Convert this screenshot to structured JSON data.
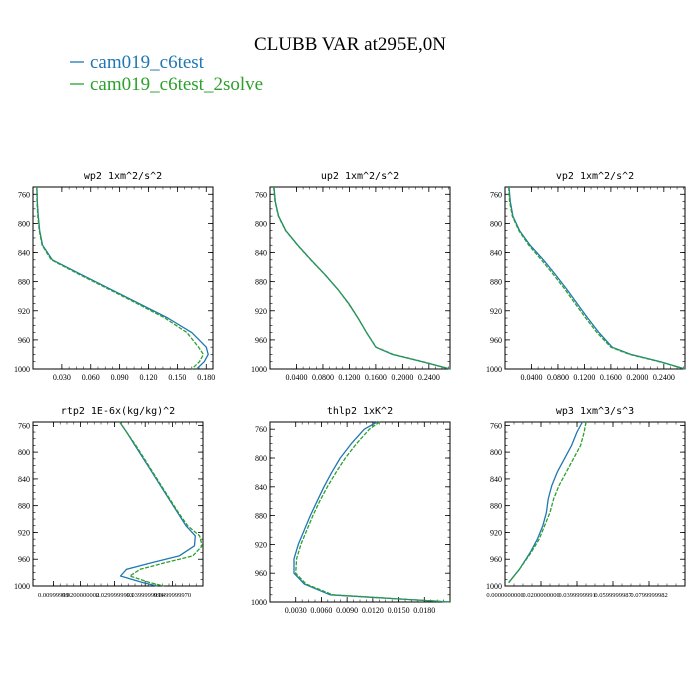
{
  "figure": {
    "title": "CLUBB VAR at295E,0N",
    "legend": [
      {
        "label": "cam019_c6test",
        "color": "#1f77b4"
      },
      {
        "label": "cam019_c6test_2solve",
        "color": "#2ca02c"
      }
    ]
  },
  "chart_data": [
    {
      "type": "line",
      "title": "wp2   1xm^2/s^2",
      "ylim": [
        1000,
        750
      ],
      "yticks": [
        "760",
        "800",
        "840",
        "880",
        "920",
        "960",
        "1000"
      ],
      "xlim": [
        0,
        0.187
      ],
      "xticks": [
        {
          "v": 0.03,
          "label": "0.030"
        },
        {
          "v": 0.06,
          "label": "0.060"
        },
        {
          "v": 0.09,
          "label": "0.090"
        },
        {
          "v": 0.12,
          "label": "0.120"
        },
        {
          "v": 0.15,
          "label": "0.150"
        },
        {
          "v": 0.18,
          "label": "0.180"
        }
      ],
      "series": [
        {
          "name": "cam019_c6test",
          "color": "#1f77b4",
          "x": [
            0.004,
            0.0045,
            0.0055,
            0.007,
            0.01,
            0.02,
            0.05,
            0.08,
            0.11,
            0.14,
            0.165,
            0.18,
            0.182,
            0.178,
            0.17
          ],
          "y": [
            750,
            770,
            790,
            810,
            830,
            850,
            870,
            890,
            910,
            930,
            950,
            970,
            980,
            990,
            1000
          ]
        },
        {
          "name": "cam019_c6test_2solve",
          "color": "#2ca02c",
          "x": [
            0.004,
            0.0042,
            0.005,
            0.0065,
            0.0095,
            0.019,
            0.048,
            0.078,
            0.108,
            0.137,
            0.16,
            0.172,
            0.177,
            0.173,
            0.165
          ],
          "y": [
            750,
            770,
            790,
            810,
            830,
            850,
            870,
            890,
            910,
            930,
            950,
            970,
            980,
            990,
            1000
          ]
        }
      ]
    },
    {
      "type": "line",
      "title": "up2   1xm^2/s^2",
      "ylim": [
        1000,
        750
      ],
      "yticks": [
        "760",
        "800",
        "840",
        "880",
        "920",
        "960",
        "1000"
      ],
      "xlim": [
        0,
        0.272
      ],
      "xticks": [
        {
          "v": 0.04,
          "label": "0.0400"
        },
        {
          "v": 0.08,
          "label": "0.0800"
        },
        {
          "v": 0.12,
          "label": "0.1200"
        },
        {
          "v": 0.16,
          "label": "0.1600"
        },
        {
          "v": 0.2,
          "label": "0.2000"
        },
        {
          "v": 0.24,
          "label": "0.2400"
        }
      ],
      "series": [
        {
          "name": "cam019_c6test",
          "color": "#1f77b4",
          "x": [
            0.006,
            0.008,
            0.013,
            0.024,
            0.042,
            0.062,
            0.083,
            0.102,
            0.119,
            0.133,
            0.146,
            0.16,
            0.185,
            0.23,
            0.272
          ],
          "y": [
            750,
            770,
            790,
            810,
            830,
            850,
            870,
            890,
            910,
            930,
            950,
            970,
            980,
            990,
            1000
          ]
        },
        {
          "name": "cam019_c6test_2solve",
          "color": "#2ca02c",
          "x": [
            0.0055,
            0.0075,
            0.0125,
            0.0235,
            0.0415,
            0.0615,
            0.0825,
            0.102,
            0.1185,
            0.133,
            0.146,
            0.1605,
            0.186,
            0.231,
            0.272
          ],
          "y": [
            750,
            770,
            790,
            810,
            830,
            850,
            870,
            890,
            910,
            930,
            950,
            970,
            980,
            990,
            1000
          ]
        }
      ]
    },
    {
      "type": "line",
      "title": "vp2   1xm^2/s^2",
      "ylim": [
        1000,
        750
      ],
      "yticks": [
        "760",
        "800",
        "840",
        "880",
        "920",
        "960",
        "1000"
      ],
      "xlim": [
        0,
        0.272
      ],
      "xticks": [
        {
          "v": 0.04,
          "label": "0.0400"
        },
        {
          "v": 0.08,
          "label": "0.0800"
        },
        {
          "v": 0.12,
          "label": "0.1200"
        },
        {
          "v": 0.16,
          "label": "0.1600"
        },
        {
          "v": 0.2,
          "label": "0.2000"
        },
        {
          "v": 0.24,
          "label": "0.2400"
        }
      ],
      "series": [
        {
          "name": "cam019_c6test",
          "color": "#1f77b4",
          "x": [
            0.006,
            0.008,
            0.012,
            0.022,
            0.038,
            0.058,
            0.076,
            0.093,
            0.109,
            0.125,
            0.142,
            0.162,
            0.19,
            0.235,
            0.272
          ],
          "y": [
            750,
            770,
            790,
            810,
            830,
            850,
            870,
            890,
            910,
            930,
            950,
            970,
            980,
            990,
            1000
          ]
        },
        {
          "name": "cam019_c6test_2solve",
          "color": "#2ca02c",
          "x": [
            0.0055,
            0.007,
            0.011,
            0.021,
            0.036,
            0.055,
            0.073,
            0.09,
            0.106,
            0.122,
            0.139,
            0.16,
            0.188,
            0.233,
            0.272
          ],
          "y": [
            750,
            770,
            790,
            810,
            830,
            850,
            870,
            890,
            910,
            930,
            950,
            970,
            980,
            990,
            1000
          ]
        }
      ]
    },
    {
      "type": "line",
      "title": "rtp2   1E-6x(kg/kg)^2",
      "ylim": [
        1000,
        755
      ],
      "yticks": [
        "760",
        "800",
        "840",
        "880",
        "920",
        "960",
        "1000"
      ],
      "xlim": [
        0.0,
        1.0
      ],
      "xticks": [
        {
          "v": 0.12,
          "label": "0.00999999"
        },
        {
          "v": 0.28,
          "label": "0.0200000002"
        },
        {
          "v": 0.48,
          "label": "0.0299999993"
        },
        {
          "v": 0.66,
          "label": "0.0399999991"
        },
        {
          "v": 0.82,
          "label": "0.0499999970"
        }
      ],
      "series": [
        {
          "name": "cam019_c6test",
          "color": "#1f77b4",
          "x": [
            0.51,
            0.55,
            0.6,
            0.65,
            0.7,
            0.75,
            0.8,
            0.85,
            0.9,
            0.955,
            0.95,
            0.86,
            0.7,
            0.55,
            0.515,
            0.65,
            0.73
          ],
          "y": [
            755,
            770,
            790,
            810,
            830,
            850,
            870,
            890,
            910,
            925,
            940,
            955,
            965,
            975,
            985,
            995,
            1000
          ]
        },
        {
          "name": "cam019_c6test_2solve",
          "color": "#2ca02c",
          "x": [
            0.51,
            0.55,
            0.605,
            0.655,
            0.705,
            0.755,
            0.805,
            0.855,
            0.91,
            0.98,
            0.995,
            0.94,
            0.78,
            0.63,
            0.57,
            0.69,
            0.77
          ],
          "y": [
            755,
            770,
            790,
            810,
            830,
            850,
            870,
            890,
            910,
            925,
            940,
            955,
            965,
            975,
            985,
            995,
            1000
          ]
        }
      ]
    },
    {
      "type": "line",
      "title": "thlp2   1xK^2",
      "ylim": [
        1000,
        750
      ],
      "yticks": [
        "760",
        "800",
        "840",
        "880",
        "920",
        "960",
        "1000"
      ],
      "xlim": [
        0,
        0.021
      ],
      "xticks": [
        {
          "v": 0.003,
          "label": "0.0030"
        },
        {
          "v": 0.006,
          "label": "0.0060"
        },
        {
          "v": 0.009,
          "label": "0.0090"
        },
        {
          "v": 0.012,
          "label": "0.0120"
        },
        {
          "v": 0.015,
          "label": "0.0150"
        },
        {
          "v": 0.018,
          "label": "0.0180"
        }
      ],
      "series": [
        {
          "name": "cam019_c6test",
          "color": "#1f77b4",
          "x": [
            0.0125,
            0.011,
            0.0095,
            0.0082,
            0.0072,
            0.0063,
            0.0055,
            0.0047,
            0.004,
            0.0033,
            0.0028,
            0.0028,
            0.004,
            0.007,
            0.021
          ],
          "y": [
            750,
            760,
            780,
            800,
            820,
            840,
            860,
            880,
            900,
            920,
            940,
            960,
            975,
            990,
            1000
          ]
        },
        {
          "name": "cam019_c6test_2solve",
          "color": "#2ca02c",
          "x": [
            0.0128,
            0.0116,
            0.0101,
            0.0088,
            0.0077,
            0.0067,
            0.0058,
            0.005,
            0.0043,
            0.0036,
            0.0031,
            0.003,
            0.0042,
            0.0073,
            0.021
          ],
          "y": [
            750,
            760,
            780,
            800,
            820,
            840,
            860,
            880,
            900,
            920,
            940,
            960,
            975,
            990,
            1000
          ]
        }
      ]
    },
    {
      "type": "line",
      "title": "wp3   1xm^3/s^3",
      "ylim": [
        1000,
        755
      ],
      "yticks": [
        "760",
        "800",
        "840",
        "880",
        "920",
        "960",
        "1000"
      ],
      "xlim": [
        0.0,
        1.0
      ],
      "xticks": [
        {
          "v": 0.0,
          "label": "0.0000000000"
        },
        {
          "v": 0.2,
          "label": "0.0200000000"
        },
        {
          "v": 0.4,
          "label": "0.0399999991"
        },
        {
          "v": 0.6,
          "label": "0.0599999987"
        },
        {
          "v": 0.8,
          "label": "0.0799999982"
        }
      ],
      "series": [
        {
          "name": "cam019_c6test",
          "color": "#1f77b4",
          "x": [
            0.43,
            0.4,
            0.37,
            0.33,
            0.29,
            0.26,
            0.24,
            0.23,
            0.21,
            0.18,
            0.14,
            0.08,
            0.02
          ],
          "y": [
            755,
            770,
            790,
            810,
            830,
            850,
            870,
            890,
            910,
            930,
            950,
            975,
            995
          ]
        },
        {
          "name": "cam019_c6test_2solve",
          "color": "#2ca02c",
          "x": [
            0.45,
            0.44,
            0.42,
            0.38,
            0.34,
            0.3,
            0.27,
            0.25,
            0.22,
            0.19,
            0.145,
            0.08,
            0.02
          ],
          "y": [
            755,
            770,
            790,
            810,
            830,
            850,
            870,
            890,
            910,
            930,
            950,
            975,
            995
          ]
        }
      ]
    }
  ]
}
